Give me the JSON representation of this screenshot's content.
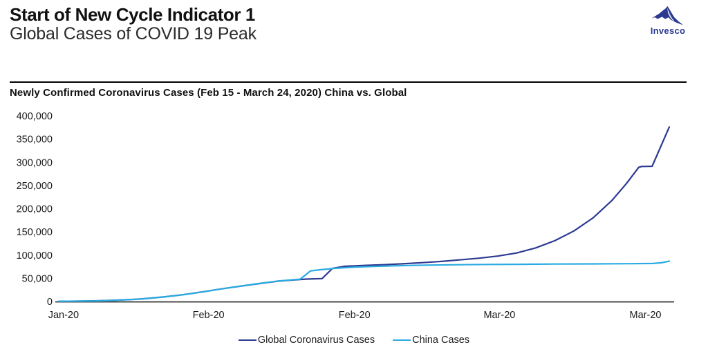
{
  "page": {
    "title": "Start of New Cycle Indicator 1",
    "subtitle": "Global Cases of COVID 19 Peak",
    "logo_text": "Invesco"
  },
  "colors": {
    "navy": "#2b3990",
    "light_blue": "#29abe2",
    "axis": "#4d4d4d",
    "text": "#1a1a1a",
    "rule": "#000000"
  },
  "chart_data": {
    "type": "line",
    "title": "Newly Confirmed Coronavirus Cases (Feb 15 - March 24, 2020) China vs. Global",
    "grid": false,
    "legend_position": "bottom",
    "x_axis": {
      "unit": "date",
      "range_days": [
        0,
        64
      ],
      "ticks": [
        {
          "day": 0.5,
          "label": "Jan-20"
        },
        {
          "day": 15.7,
          "label": "Feb-20"
        },
        {
          "day": 31.0,
          "label": "Feb-20"
        },
        {
          "day": 46.2,
          "label": "Mar-20"
        },
        {
          "day": 61.5,
          "label": "Mar-20"
        }
      ]
    },
    "y_axis": {
      "ylim": [
        0,
        400000
      ],
      "tick_values": [
        0,
        50000,
        100000,
        150000,
        200000,
        250000,
        300000,
        350000,
        400000
      ],
      "tick_labels": [
        "0",
        "50,000",
        "100,000",
        "150,000",
        "200,000",
        "250,000",
        "300,000",
        "350,000",
        "400,000"
      ]
    },
    "series": [
      {
        "name": "Global Coronavirus Cases",
        "color": "#2b3990",
        "points": [
          [
            0,
            500
          ],
          [
            2,
            800
          ],
          [
            4,
            1500
          ],
          [
            6,
            2800
          ],
          [
            8,
            4700
          ],
          [
            9,
            6100
          ],
          [
            11,
            9900
          ],
          [
            13,
            14600
          ],
          [
            15,
            20500
          ],
          [
            17,
            27000
          ],
          [
            19,
            32800
          ],
          [
            21,
            38500
          ],
          [
            23,
            43800
          ],
          [
            25,
            47000
          ],
          [
            26,
            48300
          ],
          [
            27.6,
            49300
          ],
          [
            28.7,
            71500
          ],
          [
            30,
            75800
          ],
          [
            32,
            77700
          ],
          [
            34,
            79200
          ],
          [
            36,
            81200
          ],
          [
            38,
            83600
          ],
          [
            40,
            86300
          ],
          [
            42,
            89600
          ],
          [
            44,
            93300
          ],
          [
            46,
            97800
          ],
          [
            48,
            104500
          ],
          [
            50,
            115500
          ],
          [
            52,
            131000
          ],
          [
            54,
            152000
          ],
          [
            56,
            180000
          ],
          [
            58,
            218000
          ],
          [
            59.5,
            254000
          ],
          [
            60.8,
            289000
          ],
          [
            61.1,
            291000
          ],
          [
            62.2,
            291500
          ],
          [
            64,
            376000
          ]
        ]
      },
      {
        "name": "China Cases",
        "color": "#29abe2",
        "points": [
          [
            0,
            450
          ],
          [
            2,
            750
          ],
          [
            4,
            1400
          ],
          [
            6,
            2700
          ],
          [
            8,
            4600
          ],
          [
            9,
            6000
          ],
          [
            11,
            9700
          ],
          [
            13,
            14400
          ],
          [
            15,
            20400
          ],
          [
            17,
            27000
          ],
          [
            19,
            33000
          ],
          [
            21,
            38800
          ],
          [
            23,
            44200
          ],
          [
            25,
            47600
          ],
          [
            25.3,
            48200
          ],
          [
            26.4,
            66000
          ],
          [
            27.5,
            68500
          ],
          [
            29,
            71500
          ],
          [
            31,
            74000
          ],
          [
            33,
            75600
          ],
          [
            35,
            76800
          ],
          [
            37,
            77800
          ],
          [
            39,
            78500
          ],
          [
            42,
            79200
          ],
          [
            45,
            79800
          ],
          [
            48,
            80200
          ],
          [
            52,
            80700
          ],
          [
            56,
            81100
          ],
          [
            60,
            81500
          ],
          [
            62.3,
            82000
          ],
          [
            63.2,
            83500
          ],
          [
            64,
            87000
          ]
        ]
      }
    ]
  }
}
